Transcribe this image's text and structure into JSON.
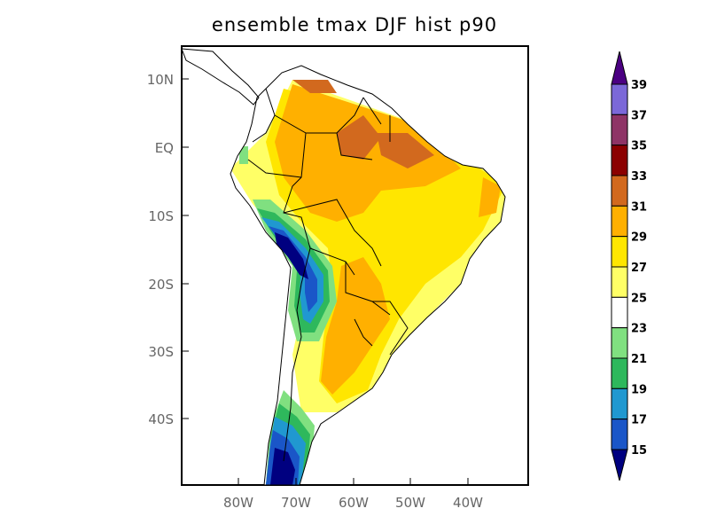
{
  "title": "ensemble tmax DJF hist p90",
  "map": {
    "lon_range": [
      -90,
      -30
    ],
    "lat_range": [
      -50,
      15
    ],
    "lon_ticks": [
      "80W",
      "70W",
      "60W",
      "50W",
      "40W"
    ],
    "lat_ticks": [
      "10N",
      "EQ",
      "10S",
      "20S",
      "30S",
      "40S"
    ]
  },
  "colorbar": {
    "levels": [
      "39",
      "37",
      "35",
      "33",
      "31",
      "29",
      "27",
      "25",
      "23",
      "21",
      "19",
      "17",
      "15"
    ],
    "colors": [
      "#7b68d8",
      "#8e3466",
      "#8b0000",
      "#d2691e",
      "#ffb000",
      "#ffe600",
      "#ffff66",
      "#ffffff",
      "#80e080",
      "#2eb85c",
      "#2098d0",
      "#1a56c8"
    ],
    "over_color": "#4b0082",
    "under_color": "#000080"
  },
  "palette": {
    "c15": "#000080",
    "c17": "#1a56c8",
    "c19": "#2098d0",
    "c21": "#2eb85c",
    "c23": "#80e080",
    "c27": "#ffff66",
    "c29": "#ffe600",
    "c31": "#ffb000",
    "c33": "#d2691e"
  }
}
